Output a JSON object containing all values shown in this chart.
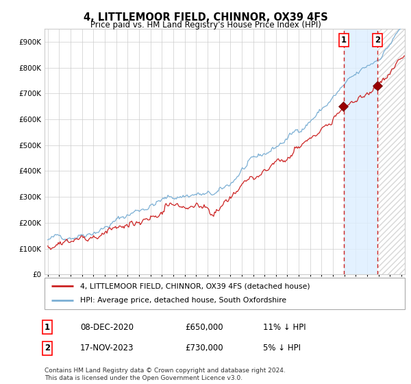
{
  "title": "4, LITTLEMOOR FIELD, CHINNOR, OX39 4FS",
  "subtitle": "Price paid vs. HM Land Registry's House Price Index (HPI)",
  "ylim": [
    0,
    950000
  ],
  "yticks": [
    0,
    100000,
    200000,
    300000,
    400000,
    500000,
    600000,
    700000,
    800000,
    900000
  ],
  "ytick_labels": [
    "£0",
    "£100K",
    "£200K",
    "£300K",
    "£400K",
    "£500K",
    "£600K",
    "£700K",
    "£800K",
    "£900K"
  ],
  "xlim_start": 1994.7,
  "xlim_end": 2026.3,
  "hpi_color": "#7bafd4",
  "price_color": "#cc2222",
  "grid_color": "#cccccc",
  "transaction1_date": 2020.93,
  "transaction1_price": 650000,
  "transaction2_date": 2023.88,
  "transaction2_price": 730000,
  "legend_line1": "4, LITTLEMOOR FIELD, CHINNOR, OX39 4FS (detached house)",
  "legend_line2": "HPI: Average price, detached house, South Oxfordshire",
  "table_row1": [
    "1",
    "08-DEC-2020",
    "£650,000",
    "11% ↓ HPI"
  ],
  "table_row2": [
    "2",
    "17-NOV-2023",
    "£730,000",
    "5% ↓ HPI"
  ],
  "footer": "Contains HM Land Registry data © Crown copyright and database right 2024.\nThis data is licensed under the Open Government Licence v3.0.",
  "shade_color": "#ddeeff",
  "hatch_color": "#bbbbbb"
}
